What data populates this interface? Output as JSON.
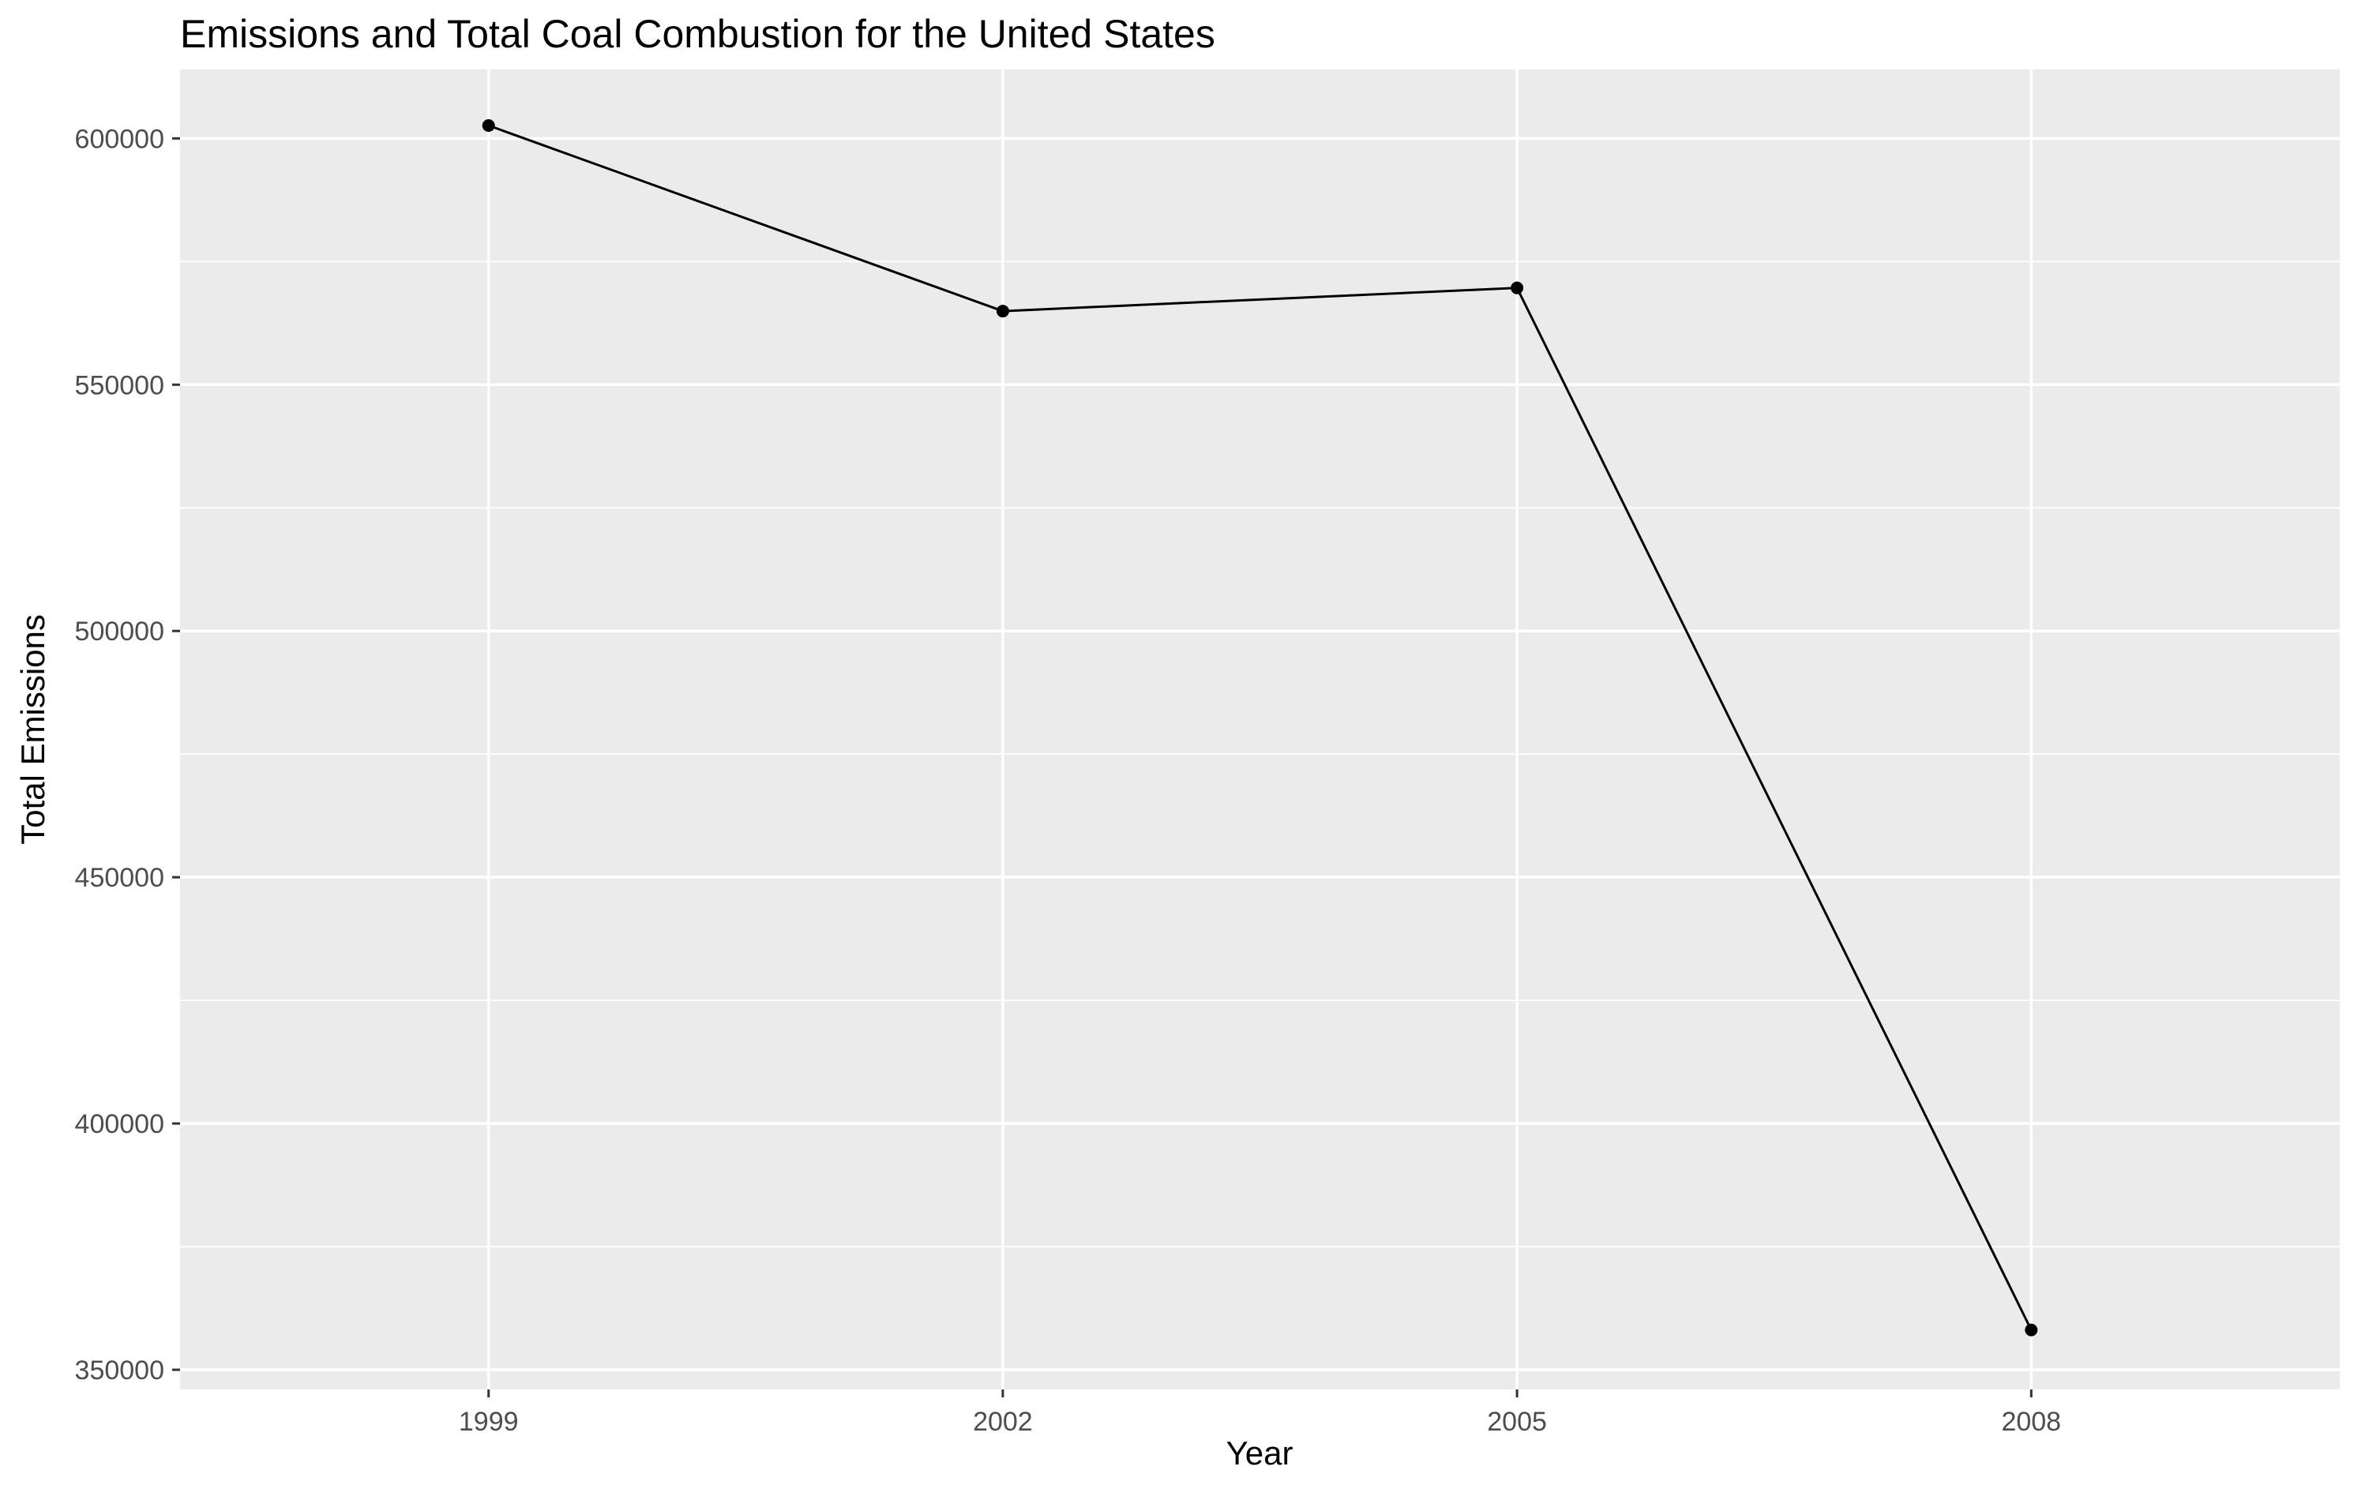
{
  "chart_data": {
    "type": "line",
    "title": "Emissions and Total Coal Combustion for the United States",
    "xlabel": "Year",
    "ylabel": "Total Emissions",
    "x": [
      1999,
      2002,
      2005,
      2008
    ],
    "series": [
      {
        "values": [
          602624,
          564940,
          569654,
          358084
        ]
      }
    ],
    "xticks": [
      "1999",
      "2002",
      "2005",
      "2008"
    ],
    "yticks": [
      "350000",
      "400000",
      "450000",
      "500000",
      "550000",
      "600000"
    ],
    "xlim": [
      1997.2,
      2009.8
    ],
    "ylim": [
      346000,
      614000
    ],
    "grid": true,
    "legend": "none",
    "colors": {
      "panel": "#ebebeb",
      "grid": "#ffffff",
      "line": "#000000",
      "tick_text": "#4d4d4d"
    }
  }
}
